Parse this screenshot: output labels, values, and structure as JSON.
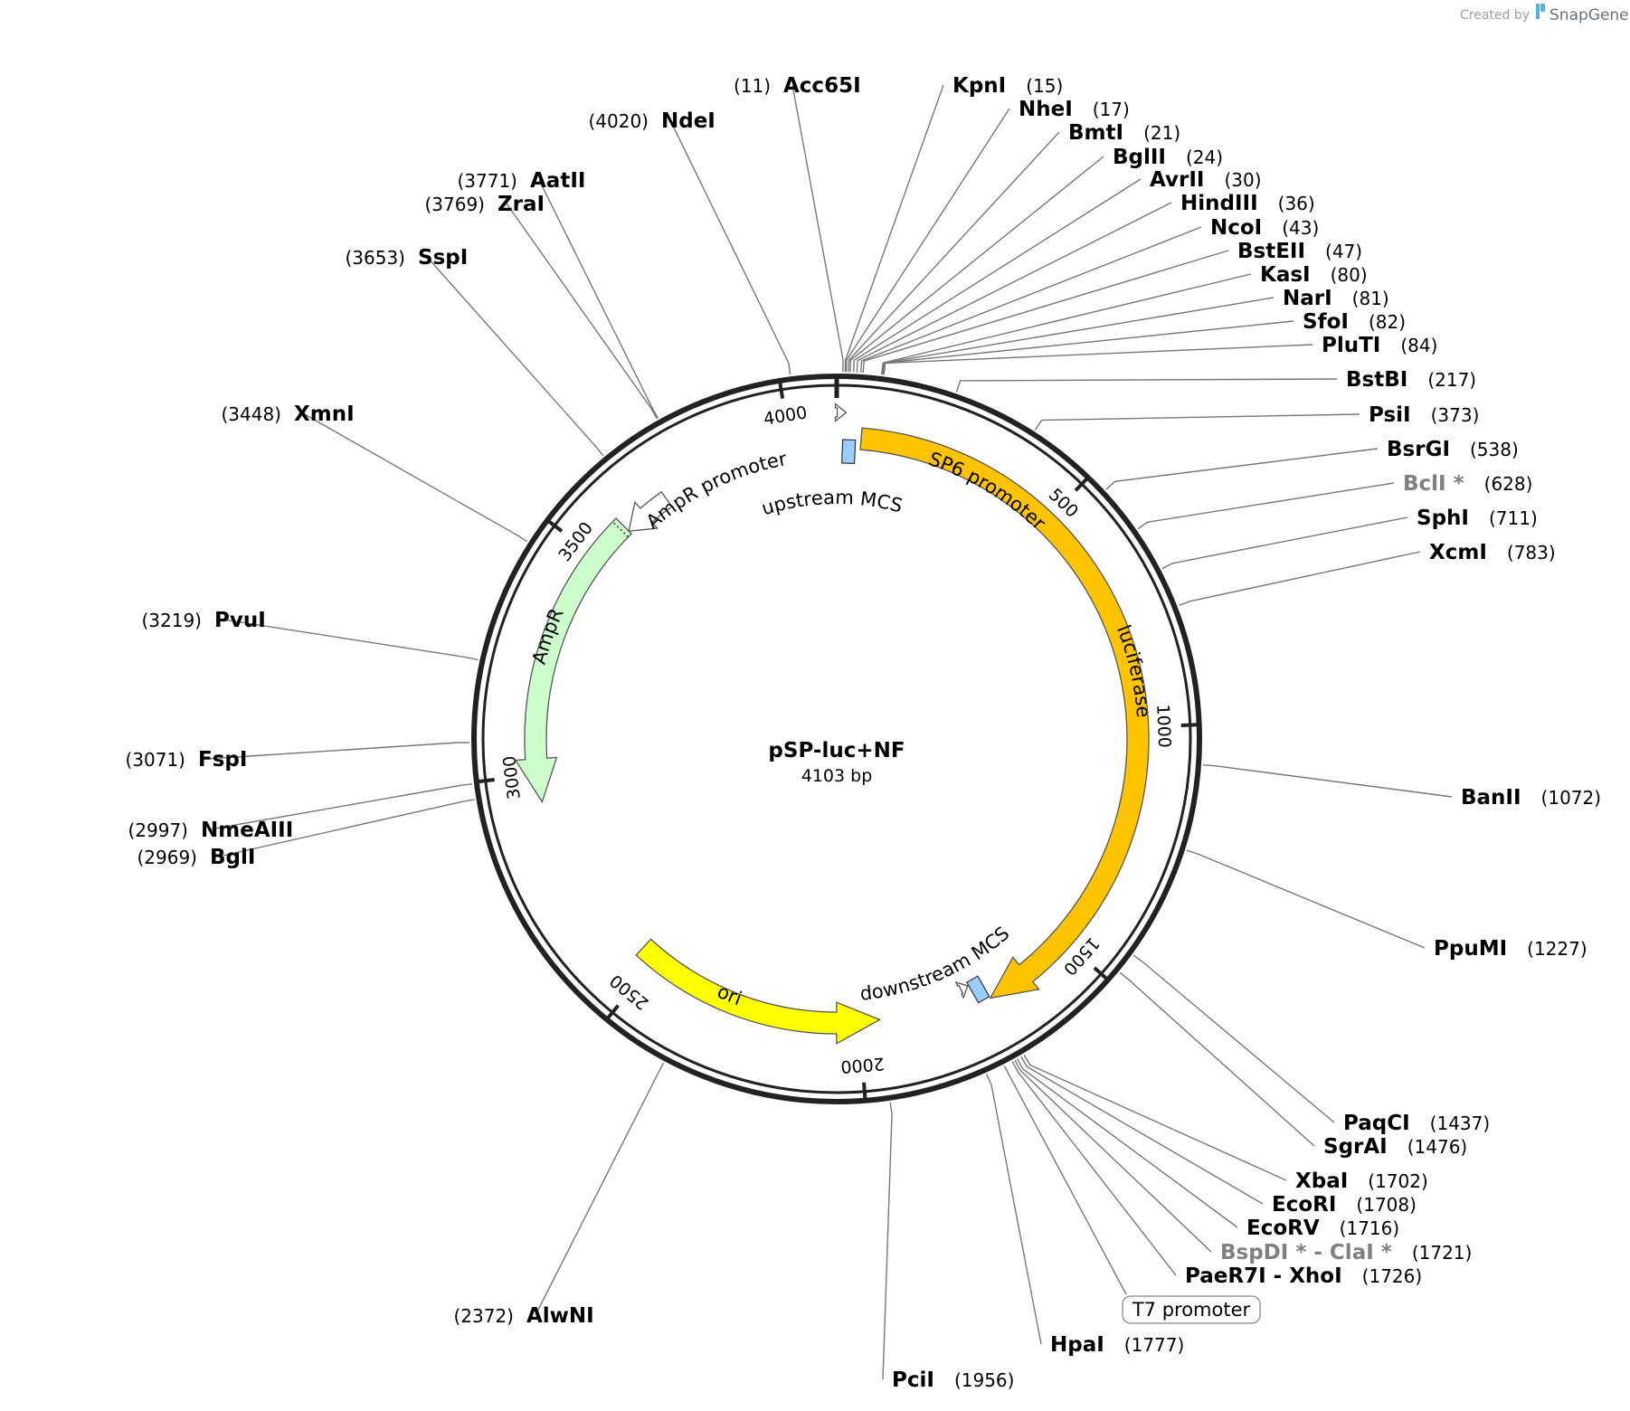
{
  "plasmid": {
    "name": "pSP-luc+NF",
    "length_label": "4103 bp",
    "length": 4103
  },
  "credit": {
    "prefix": "Created by",
    "brand": "SnapGene"
  },
  "ticks": [
    {
      "label": "500",
      "pos": 500
    },
    {
      "label": "1000",
      "pos": 1000
    },
    {
      "label": "1500",
      "pos": 1500
    },
    {
      "label": "2000",
      "pos": 2000
    },
    {
      "label": "2500",
      "pos": 2500
    },
    {
      "label": "3000",
      "pos": 3000
    },
    {
      "label": "3500",
      "pos": 3500
    },
    {
      "label": "4000",
      "pos": 4000
    }
  ],
  "features": [
    {
      "name": "luciferase",
      "label": "luciferase",
      "type": "cds",
      "color": "#FFC400",
      "start": 53,
      "end": 1702,
      "strand": "+"
    },
    {
      "name": "ori",
      "label": "ori",
      "type": "rep_origin",
      "color": "#FFFF00",
      "start": 1952,
      "end": 2540,
      "strand": "-"
    },
    {
      "name": "AmpR",
      "label": "AmpR",
      "type": "cds",
      "color": "#CCFFCC",
      "start": 2940,
      "end": 3590,
      "strand": "-"
    },
    {
      "name": "AmpR promoter",
      "label": "AmpR promoter",
      "type": "promoter",
      "color": "#FFFFFF",
      "start": 3590,
      "end": 3700,
      "strand": "-"
    },
    {
      "name": "SP6 promoter",
      "label": "SP6 promoter",
      "type": "promoter",
      "color": "#FFFFFF",
      "start": 1,
      "end": 19,
      "strand": "+"
    },
    {
      "name": "upstream MCS",
      "label": "upstream MCS",
      "type": "misc",
      "color": "#99CCFF",
      "start": 11,
      "end": 43,
      "strand": "."
    },
    {
      "name": "downstream MCS",
      "label": "downstream MCS",
      "type": "misc",
      "color": "#99CCFF",
      "start": 1702,
      "end": 1730,
      "strand": "."
    },
    {
      "name": "T7 promoter",
      "label": "T7 promoter",
      "type": "promoter",
      "color": "#FFFFFF",
      "start": 1733,
      "end": 1751,
      "strand": "-"
    }
  ],
  "sites": [
    {
      "name": "Acc65I",
      "pos_label": "(11)",
      "pos": 11,
      "unique": true
    },
    {
      "name": "KpnI",
      "pos_label": "(15)",
      "pos": 15,
      "unique": true
    },
    {
      "name": "NheI",
      "pos_label": "(17)",
      "pos": 17,
      "unique": true
    },
    {
      "name": "BmtI",
      "pos_label": "(21)",
      "pos": 21,
      "unique": true
    },
    {
      "name": "BglII",
      "pos_label": "(24)",
      "pos": 24,
      "unique": true
    },
    {
      "name": "AvrII",
      "pos_label": "(30)",
      "pos": 30,
      "unique": true
    },
    {
      "name": "HindIII",
      "pos_label": "(36)",
      "pos": 36,
      "unique": true
    },
    {
      "name": "NcoI",
      "pos_label": "(43)",
      "pos": 43,
      "unique": true
    },
    {
      "name": "BstEII",
      "pos_label": "(47)",
      "pos": 47,
      "unique": true
    },
    {
      "name": "KasI",
      "pos_label": "(80)",
      "pos": 80,
      "unique": true
    },
    {
      "name": "NarI",
      "pos_label": "(81)",
      "pos": 81,
      "unique": true
    },
    {
      "name": "SfoI",
      "pos_label": "(82)",
      "pos": 82,
      "unique": true
    },
    {
      "name": "PluTI",
      "pos_label": "(84)",
      "pos": 84,
      "unique": true
    },
    {
      "name": "BstBI",
      "pos_label": "(217)",
      "pos": 217,
      "unique": true
    },
    {
      "name": "PsiI",
      "pos_label": "(373)",
      "pos": 373,
      "unique": true
    },
    {
      "name": "BsrGI",
      "pos_label": "(538)",
      "pos": 538,
      "unique": true
    },
    {
      "name": "BclI *",
      "pos_label": "(628)",
      "pos": 628,
      "unique": false
    },
    {
      "name": "SphI",
      "pos_label": "(711)",
      "pos": 711,
      "unique": true
    },
    {
      "name": "XcmI",
      "pos_label": "(783)",
      "pos": 783,
      "unique": true
    },
    {
      "name": "BanII",
      "pos_label": "(1072)",
      "pos": 1072,
      "unique": true
    },
    {
      "name": "PpuMI",
      "pos_label": "(1227)",
      "pos": 1227,
      "unique": true
    },
    {
      "name": "PaqCI",
      "pos_label": "(1437)",
      "pos": 1437,
      "unique": true
    },
    {
      "name": "SgrAI",
      "pos_label": "(1476)",
      "pos": 1476,
      "unique": true
    },
    {
      "name": "XbaI",
      "pos_label": "(1702)",
      "pos": 1702,
      "unique": true
    },
    {
      "name": "EcoRI",
      "pos_label": "(1708)",
      "pos": 1708,
      "unique": true
    },
    {
      "name": "EcoRV",
      "pos_label": "(1716)",
      "pos": 1716,
      "unique": true
    },
    {
      "name": "BspDI * - ClaI *",
      "pos_label": "(1721)",
      "pos": 1721,
      "unique": false
    },
    {
      "name": "PaeR7I - XhoI",
      "pos_label": "(1726)",
      "pos": 1726,
      "unique": true
    },
    {
      "name": "T7 promoter",
      "pos_label": "",
      "pos": 1742,
      "unique": true,
      "boxed": true
    },
    {
      "name": "HpaI",
      "pos_label": "(1777)",
      "pos": 1777,
      "unique": true
    },
    {
      "name": "PciI",
      "pos_label": "(1956)",
      "pos": 1956,
      "unique": true
    },
    {
      "name": "AlwNI",
      "pos_label": "(2372)",
      "pos": 2372,
      "unique": true
    },
    {
      "name": "BglI",
      "pos_label": "(2969)",
      "pos": 2969,
      "unique": true
    },
    {
      "name": "NmeAIII",
      "pos_label": "(2997)",
      "pos": 2997,
      "unique": true
    },
    {
      "name": "FspI",
      "pos_label": "(3071)",
      "pos": 3071,
      "unique": true
    },
    {
      "name": "PvuI",
      "pos_label": "(3219)",
      "pos": 3219,
      "unique": true
    },
    {
      "name": "XmnI",
      "pos_label": "(3448)",
      "pos": 3448,
      "unique": true
    },
    {
      "name": "SspI",
      "pos_label": "(3653)",
      "pos": 3653,
      "unique": true
    },
    {
      "name": "ZraI",
      "pos_label": "(3769)",
      "pos": 3769,
      "unique": true
    },
    {
      "name": "AatII",
      "pos_label": "(3771)",
      "pos": 3771,
      "unique": true
    },
    {
      "name": "NdeI",
      "pos_label": "(4020)",
      "pos": 4020,
      "unique": true
    }
  ]
}
